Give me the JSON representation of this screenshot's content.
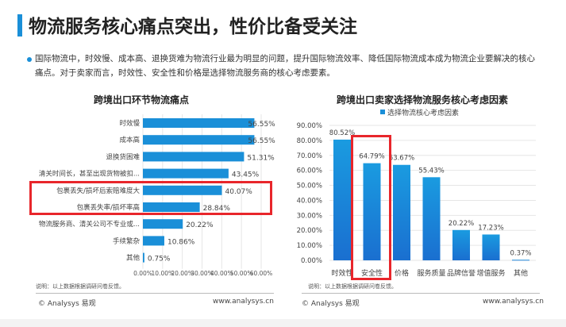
{
  "title": "物流服务核心痛点突出，性价比备受关注",
  "summary": "国际物流中，时效慢、成本高、退换货难为物流行业最为明显的问题，提升国际物流效率、降低国际物流成本成为物流企业要解决的核心痛点。对于卖家而言，时效性、安全性和价格是选择物流服务商的核心考虑要素。",
  "colors": {
    "accent": "#1a8fd8",
    "highlight": "#e8262b"
  },
  "chart_data": [
    {
      "type": "bar",
      "orientation": "horizontal",
      "title": "跨境出口环节物流痛点",
      "categories": [
        "时效慢",
        "成本高",
        "退换货困难",
        "清关时间长，甚至出现货物被扣...",
        "包裹丢失/损坏后索赔难度大",
        "包裹丢失率/损坏率高",
        "物流服务商、清关公司不专业或...",
        "手续繁杂",
        "其他"
      ],
      "values": [
        56.55,
        56.55,
        51.31,
        43.45,
        40.07,
        28.84,
        20.22,
        10.86,
        0.75
      ],
      "labels": [
        "56.55%",
        "56.55%",
        "51.31%",
        "43.45%",
        "40.07%",
        "28.84%",
        "20.22%",
        "10.86%",
        "0.75%"
      ],
      "xlim": [
        0,
        60
      ],
      "xticks": [
        "0.00%",
        "10.00%",
        "20.00%",
        "30.00%",
        "40.00%",
        "50.00%",
        "60.00%"
      ],
      "grid": true,
      "highlighted": [
        "包裹丢失/损坏后索赔难度大",
        "包裹丢失率/损坏率高"
      ],
      "note": "说明：以上数据根据调研问卷反馈。"
    },
    {
      "type": "bar",
      "orientation": "vertical",
      "title": "跨境出口卖家选择物流服务核心考虑因素",
      "legend": "选择物流核心考虑因素",
      "legend_position": "top",
      "categories": [
        "时效性",
        "安全性",
        "价格",
        "服务质量",
        "品牌信誉",
        "增值服务",
        "其他"
      ],
      "values": [
        80.52,
        64.79,
        63.67,
        55.43,
        20.22,
        17.23,
        0.37
      ],
      "labels": [
        "80.52%",
        "64.79%",
        "63.67%",
        "55.43%",
        "20.22%",
        "17.23%",
        "0.37%"
      ],
      "ylim": [
        0,
        90
      ],
      "yticks": [
        "0.00%",
        "10.00%",
        "20.00%",
        "30.00%",
        "40.00%",
        "50.00%",
        "60.00%",
        "70.00%",
        "80.00%",
        "90.00%"
      ],
      "grid": true,
      "highlighted": [
        "安全性"
      ],
      "note": "说明：以上数据根据调研问卷反馈。"
    }
  ],
  "footer": {
    "left": "© Analysys 易观",
    "right": "www.analysys.cn"
  }
}
